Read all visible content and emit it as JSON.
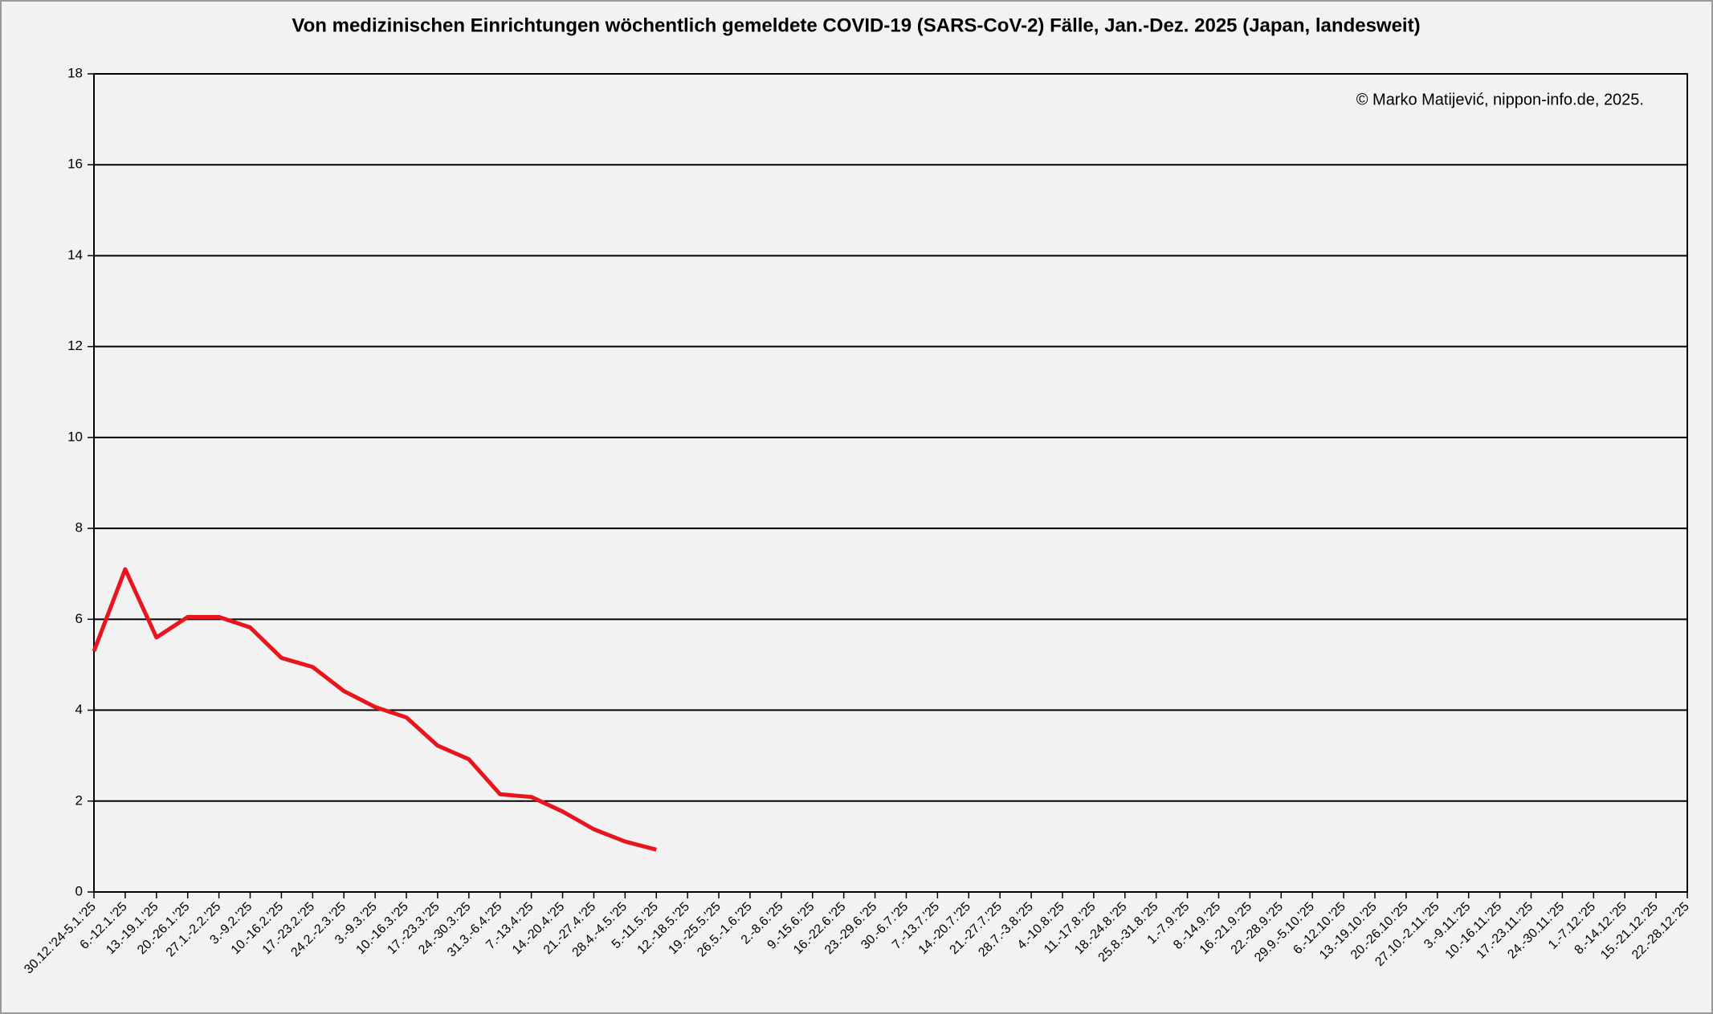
{
  "chart_data": {
    "type": "line",
    "title": "Von medizinischen Einrichtungen wöchentlich gemeldete COVID-19 (SARS-CoV-2) Fälle, Jan.-Dez. 2025 (Japan, landesweit)",
    "annotation": "© Marko Matijević, nippon-info.de, 2025.",
    "categories": [
      "30.12.'24-5.1.'25",
      "6.-12.1.'25",
      "13.-19.1.'25",
      "20.-26.1.'25",
      "27.1.-2.2.'25",
      "3.-9.2.'25",
      "10.-16.2.'25",
      "17.-23.2.'25",
      "24.2.-2.3.'25",
      "3.-9.3.'25",
      "10.-16.3.'25",
      "17.-23.3.'25",
      "24.-30.3.'25",
      "31.3.-6.4.'25",
      "7.-13.4.'25",
      "14.-20.4.'25",
      "21.-27.4.'25",
      "28.4.-4.5.'25",
      "5.-11.5.'25",
      "12.-18.5.'25",
      "19.-25.5.'25",
      "26.5.-1.6.'25",
      "2.-8.6.'25",
      "9.-15.6.'25",
      "16.-22.6.'25",
      "23.-29.6.'25",
      "30.-6.7.'25",
      "7.-13.7.'25",
      "14.-20.7.'25",
      "21.-27.7.'25",
      "28.7.-3.8.'25",
      "4.-10.8.'25",
      "11.-17.8.'25",
      "18.-24.8.'25",
      "25.8.-31.8.'25",
      "1.-7.9.'25",
      "8.-14.9.'25",
      "16.-21.9.'25",
      "22.-28.9.'25",
      "29.9.-5.10.'25",
      "6.-12.10.'25",
      "13.-19.10.'25",
      "20.-26.10.'25",
      "27.10.-2.11.'25",
      "3.-9.11.'25",
      "10.-16.11.'25",
      "17.-23.11.'25",
      "24.-30.11.'25",
      "1.-7.12.'25",
      "8.-14.12.'25",
      "15.-21.12.'25",
      "22.-28.12.'25"
    ],
    "series": [
      {
        "name": "COVID-19",
        "color": "#e8141e",
        "values": [
          5.3,
          7.1,
          5.6,
          6.05,
          6.05,
          5.82,
          5.15,
          4.95,
          4.42,
          4.07,
          3.84,
          3.22,
          2.92,
          2.15,
          2.09,
          1.77,
          1.38,
          1.11,
          0.93,
          null,
          null,
          null,
          null,
          null,
          null,
          null,
          null,
          null,
          null,
          null,
          null,
          null,
          null,
          null,
          null,
          null,
          null,
          null,
          null,
          null,
          null,
          null,
          null,
          null,
          null,
          null,
          null,
          null,
          null,
          null,
          null,
          null
        ]
      }
    ],
    "ylim": [
      0,
      18
    ],
    "yticks": [
      0,
      2,
      4,
      6,
      8,
      10,
      12,
      14,
      16,
      18
    ],
    "grid": true
  }
}
